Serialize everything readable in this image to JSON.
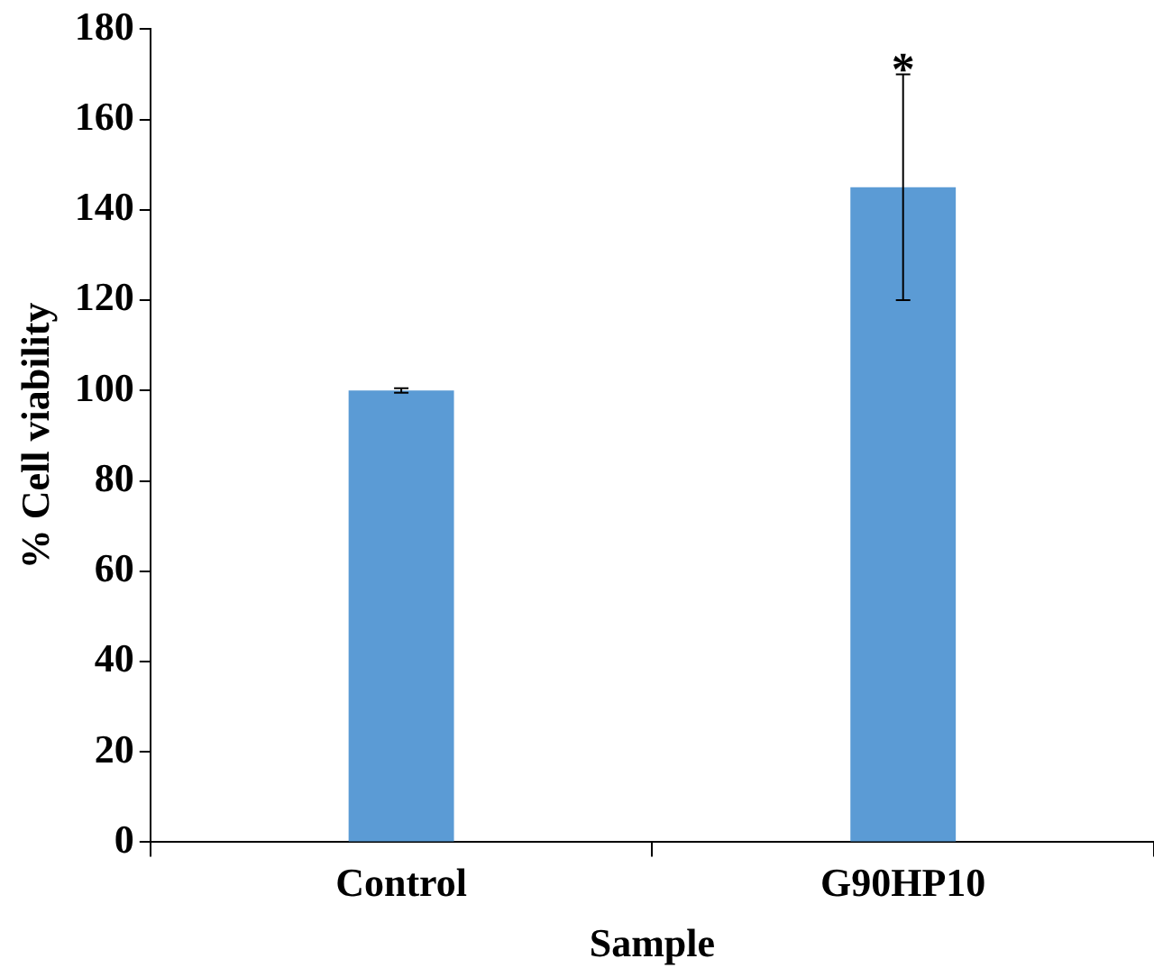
{
  "chart_data": {
    "type": "bar",
    "xlabel": "Sample",
    "ylabel": "% Cell viability",
    "categories": [
      "Control",
      "G90HP10"
    ],
    "values": [
      100,
      145
    ],
    "errors": [
      0.5,
      25
    ],
    "color": "#5b9bd5",
    "ylim": [
      0,
      180
    ],
    "yticks": [
      0,
      20,
      40,
      60,
      80,
      100,
      120,
      140,
      160,
      180
    ],
    "grid": false,
    "legend": false,
    "annotations": [
      {
        "text": "*",
        "x": "G90HP10",
        "y": 170
      }
    ]
  }
}
